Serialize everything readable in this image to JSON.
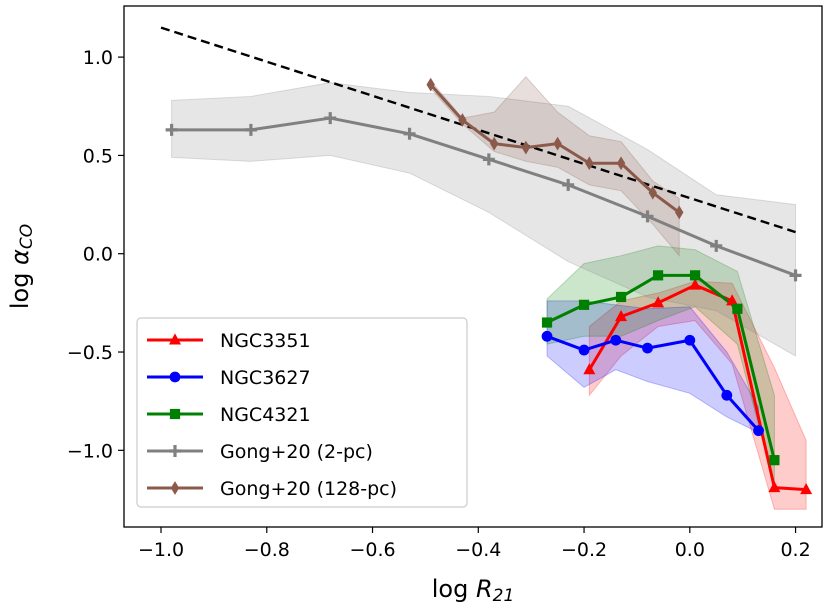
{
  "chart_data": {
    "type": "line",
    "xlabel": "log R21",
    "ylabel": "log αCO",
    "xlim": [
      -1.07,
      0.25
    ],
    "ylim": [
      -1.39,
      1.26
    ],
    "xticks": [
      -1.0,
      -0.8,
      -0.6,
      -0.4,
      -0.2,
      0.0,
      0.2
    ],
    "xtick_labels": [
      "−1.0",
      "−0.8",
      "−0.6",
      "−0.4",
      "−0.2",
      "0.0",
      "0.2"
    ],
    "yticks": [
      1.0,
      0.5,
      0.0,
      -0.5,
      -1.0
    ],
    "ytick_labels": [
      "1.0",
      "0.5",
      "0.0",
      "−0.5",
      "−1.0"
    ],
    "legend_position": "lower-left",
    "reference_line": {
      "style": "dashed",
      "color": "#000000",
      "x": [
        -1.0,
        0.2
      ],
      "y": [
        1.15,
        0.11
      ]
    },
    "series": [
      {
        "name": "NGC3351",
        "color": "#ff0000",
        "marker": "triangle",
        "x": [
          -0.19,
          -0.13,
          -0.06,
          0.01,
          0.08,
          0.16,
          0.22
        ],
        "y": [
          -0.59,
          -0.32,
          -0.25,
          -0.16,
          -0.24,
          -1.19,
          -1.2
        ],
        "band_upper": [
          -0.37,
          -0.24,
          -0.2,
          -0.14,
          -0.15,
          -0.58,
          -0.95
        ],
        "band_lower": [
          -0.72,
          -0.52,
          -0.37,
          -0.34,
          -0.56,
          -1.3,
          -1.3
        ]
      },
      {
        "name": "NGC3627",
        "color": "#0000ff",
        "marker": "circle",
        "x": [
          -0.27,
          -0.2,
          -0.14,
          -0.08,
          -0.0,
          0.07,
          0.13
        ],
        "y": [
          -0.42,
          -0.49,
          -0.44,
          -0.48,
          -0.44,
          -0.72,
          -0.9
        ],
        "band_upper": [
          -0.24,
          -0.24,
          -0.26,
          -0.28,
          -0.27,
          -0.5,
          -0.78
        ],
        "band_lower": [
          -0.52,
          -0.68,
          -0.59,
          -0.65,
          -0.71,
          -0.83,
          -0.91
        ]
      },
      {
        "name": "NGC4321",
        "color": "#008000",
        "marker": "square",
        "x": [
          -0.27,
          -0.2,
          -0.13,
          -0.06,
          0.01,
          0.09,
          0.16
        ],
        "y": [
          -0.35,
          -0.26,
          -0.22,
          -0.11,
          -0.11,
          -0.28,
          -1.05
        ],
        "band_upper": [
          -0.23,
          -0.05,
          -0.01,
          0.04,
          0.02,
          -0.09,
          -0.72
        ],
        "band_lower": [
          -0.46,
          -0.42,
          -0.42,
          -0.34,
          -0.27,
          -0.46,
          -1.18
        ]
      },
      {
        "name": "Gong+20 (2-pc)",
        "color": "#808080",
        "marker": "plus",
        "x": [
          -0.98,
          -0.83,
          -0.68,
          -0.53,
          -0.38,
          -0.23,
          -0.08,
          0.05,
          0.2
        ],
        "y": [
          0.63,
          0.63,
          0.69,
          0.61,
          0.48,
          0.35,
          0.19,
          0.04,
          -0.11
        ],
        "band_upper": [
          0.78,
          0.8,
          0.87,
          0.82,
          0.8,
          0.75,
          0.53,
          0.3,
          0.25
        ],
        "band_lower": [
          0.49,
          0.47,
          0.5,
          0.41,
          0.21,
          -0.04,
          -0.22,
          -0.29,
          -0.52
        ]
      },
      {
        "name": "Gong+20 (128-pc)",
        "color": "#8b5a4b",
        "marker": "diamond",
        "x": [
          -0.49,
          -0.43,
          -0.37,
          -0.31,
          -0.25,
          -0.19,
          -0.13,
          -0.07,
          -0.02
        ],
        "y": [
          0.86,
          0.68,
          0.56,
          0.54,
          0.56,
          0.46,
          0.46,
          0.31,
          0.21
        ],
        "band_upper": [
          0.88,
          0.69,
          0.72,
          0.9,
          0.72,
          0.6,
          0.57,
          0.37,
          0.28
        ],
        "band_lower": [
          0.84,
          0.66,
          0.52,
          0.47,
          0.44,
          0.35,
          0.32,
          0.15,
          -0.01
        ]
      }
    ]
  }
}
